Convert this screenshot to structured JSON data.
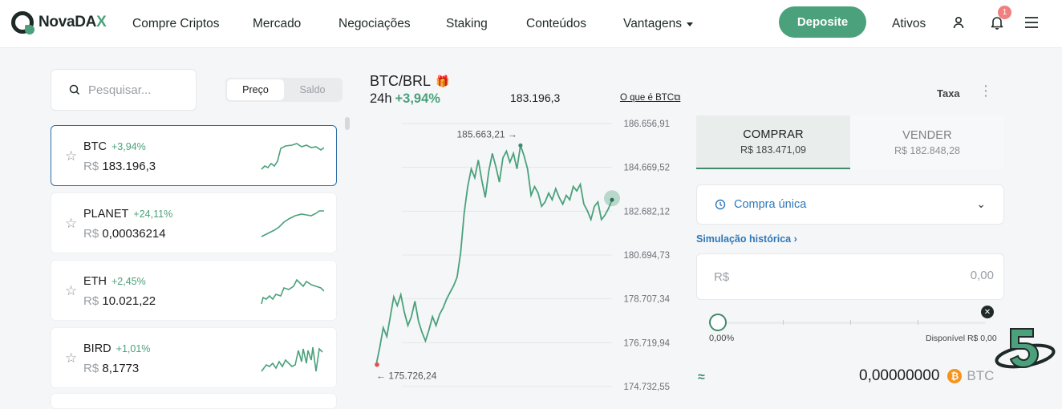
{
  "brand": {
    "name_main": "NovaDA",
    "name_x": "X"
  },
  "nav": {
    "items": [
      "Compre Criptos",
      "Mercado",
      "Negociações",
      "Staking",
      "Conteúdos",
      "Vantagens"
    ],
    "deposit": "Deposite",
    "assets": "Ativos",
    "notifications_count": "1"
  },
  "market": {
    "search_placeholder": "Pesquisar...",
    "toggle": [
      "Preço",
      "Saldo"
    ],
    "coins": [
      {
        "symbol": "BTC",
        "change": "+3,94%",
        "currency": "R$",
        "price": "183.196,3",
        "selected": true
      },
      {
        "symbol": "PLANET",
        "change": "+24,11%",
        "currency": "R$",
        "price": "0,00036214",
        "selected": false
      },
      {
        "symbol": "ETH",
        "change": "+2,45%",
        "currency": "R$",
        "price": "10.021,22",
        "selected": false
      },
      {
        "symbol": "BIRD",
        "change": "+1,01%",
        "currency": "R$",
        "price": "8,1773",
        "selected": false
      }
    ]
  },
  "pair": {
    "title": "BTC/BRL",
    "period": "24h",
    "change": "+3,94%",
    "last": "183.196,3",
    "what_is": "O que é BTC"
  },
  "chart_data": {
    "type": "line",
    "y_ticks": [
      "186.656,91",
      "184.669,52",
      "182.682,12",
      "180.694,73",
      "178.707,34",
      "176.719,94",
      "174.732,55"
    ],
    "ylim": [
      174732.55,
      186656.91
    ],
    "high_label": "185.663,21 →",
    "low_label": "← 175.726,24",
    "high": 185663.21,
    "low": 175726.24,
    "values": [
      175726,
      176500,
      177400,
      177000,
      177900,
      178800,
      178400,
      178900,
      178100,
      177500,
      177900,
      178600,
      177700,
      177200,
      176800,
      177300,
      177900,
      177500,
      178000,
      178300,
      178700,
      179000,
      179300,
      179700,
      180800,
      182600,
      183800,
      184600,
      184200,
      185000,
      184100,
      183300,
      184500,
      185300,
      184700,
      184000,
      185100,
      185400,
      184900,
      185300,
      184600,
      185663,
      185200,
      184600,
      183400,
      183800,
      183500,
      182900,
      183100,
      183500,
      183200,
      183700,
      183300,
      183000,
      183400,
      183200,
      183800,
      183600,
      183900,
      183000,
      182700,
      182300,
      182900,
      183100,
      182300,
      182500,
      182800,
      183196
    ]
  },
  "trade": {
    "fee": "Taxa",
    "buy": {
      "label": "COMPRAR",
      "price": "R$ 183.471,09"
    },
    "sell": {
      "label": "VENDER",
      "price": "R$ 182.848,28"
    },
    "order_type": "Compra única",
    "simulation": "Simulação histórica",
    "amount_currency": "R$",
    "amount_placeholder": "0,00",
    "slider_percent": "0,00%",
    "available": "Disponível R$ 0,00",
    "approx_symbol": "≈",
    "estimate": "0,00000000",
    "estimate_unit": "BTC"
  },
  "colors": {
    "accent": "#4aa17b",
    "link": "#2e78b8",
    "btc": "#f7931a"
  }
}
